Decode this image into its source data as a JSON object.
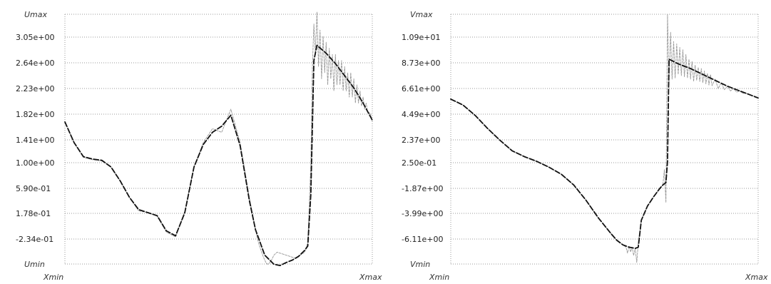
{
  "chart_data": [
    {
      "type": "line",
      "title": "",
      "xlabel": "",
      "ylabel": "",
      "x_range_labels": [
        "Xmin",
        "Xmax"
      ],
      "y_range_labels": [
        "Umin",
        "Umax"
      ],
      "y_tick_labels": [
        "3.05e+00",
        "2.64e+00",
        "2.23e+00",
        "1.82e+00",
        "1.41e+00",
        "1.00e+00",
        "5.90e-01",
        "1.78e-01",
        "-2.34e-01"
      ],
      "ylim": [
        -0.645,
        3.46
      ],
      "grid": true,
      "series": [
        {
          "style": "solid",
          "color": "#999999",
          "x": [
            0.0,
            0.03,
            0.06,
            0.09,
            0.12,
            0.15,
            0.18,
            0.21,
            0.24,
            0.27,
            0.3,
            0.33,
            0.36,
            0.39,
            0.42,
            0.45,
            0.48,
            0.51,
            0.54,
            0.57,
            0.6,
            0.62,
            0.625,
            0.63,
            0.635,
            0.64,
            0.645,
            0.65,
            0.655,
            0.66,
            0.665,
            0.67,
            0.675,
            0.68,
            0.69,
            0.72,
            0.75,
            0.78,
            0.79,
            0.8,
            0.805,
            0.81,
            0.815,
            0.82,
            0.825,
            0.83,
            0.835,
            0.84,
            0.845,
            0.85,
            0.855,
            0.86,
            0.865,
            0.87,
            0.875,
            0.88,
            0.885,
            0.89,
            0.895,
            0.9,
            0.905,
            0.91,
            0.915,
            0.92,
            0.925,
            0.93,
            0.935,
            0.94,
            0.945,
            0.95,
            0.955,
            0.96,
            0.965,
            0.97,
            0.975,
            0.98,
            0.985,
            0.99,
            0.995,
            1.0
          ],
          "y": [
            1.69,
            1.35,
            1.11,
            1.07,
            1.05,
            0.95,
            0.72,
            0.45,
            0.23,
            0.2,
            0.14,
            -0.12,
            -0.2,
            0.22,
            0.95,
            1.35,
            1.58,
            1.52,
            1.9,
            1.35,
            0.45,
            -0.07,
            -0.2,
            -0.3,
            -0.38,
            -0.45,
            -0.52,
            -0.58,
            -0.63,
            -0.65,
            -0.63,
            -0.6,
            -0.55,
            -0.5,
            -0.45,
            -0.5,
            -0.55,
            -0.45,
            -0.3,
            1.0,
            2.6,
            3.3,
            2.8,
            3.5,
            2.6,
            3.2,
            2.4,
            3.1,
            2.5,
            3.0,
            2.3,
            2.9,
            2.4,
            2.8,
            2.2,
            2.8,
            2.3,
            2.7,
            2.3,
            2.7,
            2.2,
            2.6,
            2.2,
            2.5,
            2.1,
            2.5,
            2.1,
            2.4,
            2.0,
            2.3,
            2.0,
            2.2,
            1.95,
            2.1,
            1.9,
            2.0,
            1.85,
            1.85,
            1.8,
            1.7
          ]
        },
        {
          "style": "dashed",
          "color": "#111111",
          "x": [
            0.0,
            0.03,
            0.06,
            0.09,
            0.12,
            0.15,
            0.18,
            0.21,
            0.24,
            0.27,
            0.3,
            0.33,
            0.36,
            0.39,
            0.42,
            0.45,
            0.48,
            0.51,
            0.54,
            0.57,
            0.6,
            0.62,
            0.65,
            0.68,
            0.7,
            0.72,
            0.74,
            0.76,
            0.78,
            0.79,
            0.8,
            0.81,
            0.82,
            0.85,
            0.88,
            0.91,
            0.94,
            0.97,
            1.0
          ],
          "y": [
            1.69,
            1.35,
            1.12,
            1.08,
            1.06,
            0.95,
            0.72,
            0.45,
            0.25,
            0.2,
            0.15,
            -0.1,
            -0.18,
            0.2,
            0.95,
            1.32,
            1.52,
            1.62,
            1.8,
            1.3,
            0.4,
            -0.08,
            -0.5,
            -0.65,
            -0.67,
            -0.62,
            -0.58,
            -0.52,
            -0.42,
            -0.35,
            0.5,
            2.7,
            2.95,
            2.82,
            2.65,
            2.45,
            2.25,
            2.0,
            1.72
          ]
        }
      ]
    },
    {
      "type": "line",
      "title": "",
      "xlabel": "",
      "ylabel": "",
      "x_range_labels": [
        "Xmin",
        "Xmax"
      ],
      "y_range_labels": [
        "Vmin",
        "Vmax"
      ],
      "y_tick_labels": [
        "1.09e+01",
        "8.73e+00",
        "6.61e+00",
        "4.49e+00",
        "2.37e+00",
        "2.50e-01",
        "-1.87e+00",
        "-3.99e+00",
        "-6.11e+00"
      ],
      "ylim": [
        -8.23,
        13.02
      ],
      "grid": true,
      "series": [
        {
          "style": "solid",
          "color": "#999999",
          "x": [
            0.0,
            0.04,
            0.08,
            0.12,
            0.16,
            0.2,
            0.24,
            0.28,
            0.32,
            0.36,
            0.4,
            0.44,
            0.48,
            0.52,
            0.54,
            0.56,
            0.57,
            0.575,
            0.58,
            0.585,
            0.59,
            0.595,
            0.6,
            0.605,
            0.61,
            0.62,
            0.64,
            0.66,
            0.68,
            0.69,
            0.695,
            0.7,
            0.705,
            0.71,
            0.715,
            0.72,
            0.725,
            0.73,
            0.735,
            0.74,
            0.745,
            0.75,
            0.755,
            0.76,
            0.765,
            0.77,
            0.775,
            0.78,
            0.785,
            0.79,
            0.795,
            0.8,
            0.805,
            0.81,
            0.815,
            0.82,
            0.825,
            0.83,
            0.835,
            0.84,
            0.845,
            0.85,
            0.86,
            0.87,
            0.88,
            0.89,
            0.9,
            0.91,
            0.92,
            0.93,
            0.94,
            0.95,
            0.96,
            0.97,
            0.98,
            0.99,
            1.0
          ],
          "y": [
            5.8,
            5.3,
            4.4,
            3.3,
            2.3,
            1.4,
            0.9,
            0.5,
            0.0,
            -0.6,
            -1.5,
            -2.8,
            -4.3,
            -5.6,
            -6.2,
            -6.6,
            -6.8,
            -7.3,
            -6.7,
            -7.2,
            -6.8,
            -7.5,
            -6.9,
            -8.1,
            -6.4,
            -4.5,
            -3.3,
            -2.5,
            -1.8,
            -1.5,
            -0.2,
            -3.0,
            13.0,
            7.0,
            11.5,
            7.5,
            10.7,
            7.6,
            10.5,
            7.9,
            10.2,
            7.8,
            10.0,
            7.7,
            9.6,
            7.6,
            9.2,
            7.5,
            9.0,
            7.3,
            8.7,
            7.4,
            8.5,
            7.3,
            8.4,
            7.2,
            8.2,
            7.1,
            8.0,
            7.0,
            7.9,
            6.95,
            7.5,
            6.7,
            7.2,
            6.6,
            6.9,
            6.5,
            6.7,
            6.4,
            6.5,
            6.3,
            6.3,
            6.2,
            6.1,
            6.0,
            5.9
          ]
        },
        {
          "style": "dashed",
          "color": "#111111",
          "x": [
            0.0,
            0.04,
            0.08,
            0.12,
            0.16,
            0.2,
            0.24,
            0.28,
            0.32,
            0.36,
            0.4,
            0.44,
            0.48,
            0.52,
            0.54,
            0.56,
            0.58,
            0.6,
            0.61,
            0.62,
            0.64,
            0.66,
            0.68,
            0.69,
            0.7,
            0.705,
            0.71,
            0.74,
            0.78,
            0.82,
            0.86,
            0.9,
            0.94,
            0.97,
            1.0
          ],
          "y": [
            5.8,
            5.3,
            4.4,
            3.3,
            2.3,
            1.4,
            0.9,
            0.5,
            0.0,
            -0.6,
            -1.5,
            -2.8,
            -4.3,
            -5.6,
            -6.2,
            -6.6,
            -6.8,
            -6.9,
            -6.8,
            -4.5,
            -3.3,
            -2.5,
            -1.8,
            -1.5,
            -1.3,
            0.5,
            9.2,
            8.8,
            8.4,
            7.9,
            7.4,
            6.9,
            6.5,
            6.2,
            5.9
          ]
        }
      ]
    }
  ]
}
